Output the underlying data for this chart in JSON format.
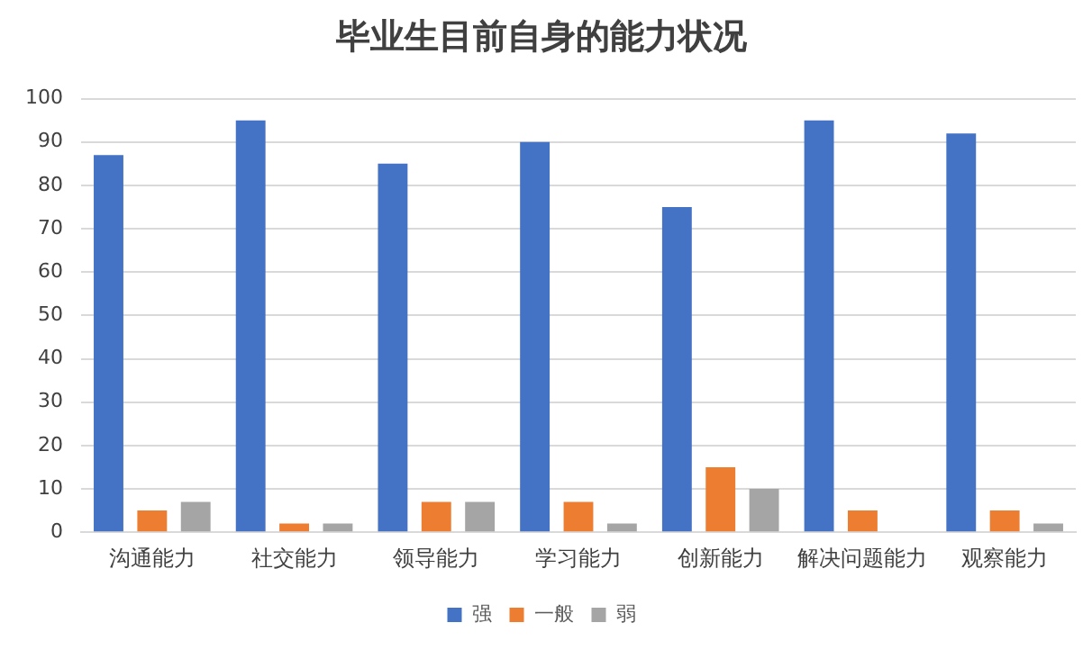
{
  "chart_data": {
    "type": "bar",
    "title": "毕业生目前自身的能力状况",
    "categories": [
      "沟通能力",
      "社交能力",
      "领导能力",
      "学习能力",
      "创新能力",
      "解决问题能力",
      "观察能力"
    ],
    "series": [
      {
        "name": "强",
        "color": "#4472c4",
        "values": [
          87,
          95,
          85,
          90,
          75,
          95,
          92
        ]
      },
      {
        "name": "一般",
        "color": "#ed7d31",
        "values": [
          5,
          2,
          7,
          7,
          15,
          5,
          5
        ]
      },
      {
        "name": "弱",
        "color": "#a5a5a5",
        "values": [
          7,
          2,
          7,
          2,
          10,
          0,
          2
        ]
      }
    ],
    "ylim": [
      0,
      100
    ],
    "yticks": [
      0,
      10,
      20,
      30,
      40,
      50,
      60,
      70,
      80,
      90,
      100
    ],
    "grid": "y",
    "legend": "bottom"
  }
}
